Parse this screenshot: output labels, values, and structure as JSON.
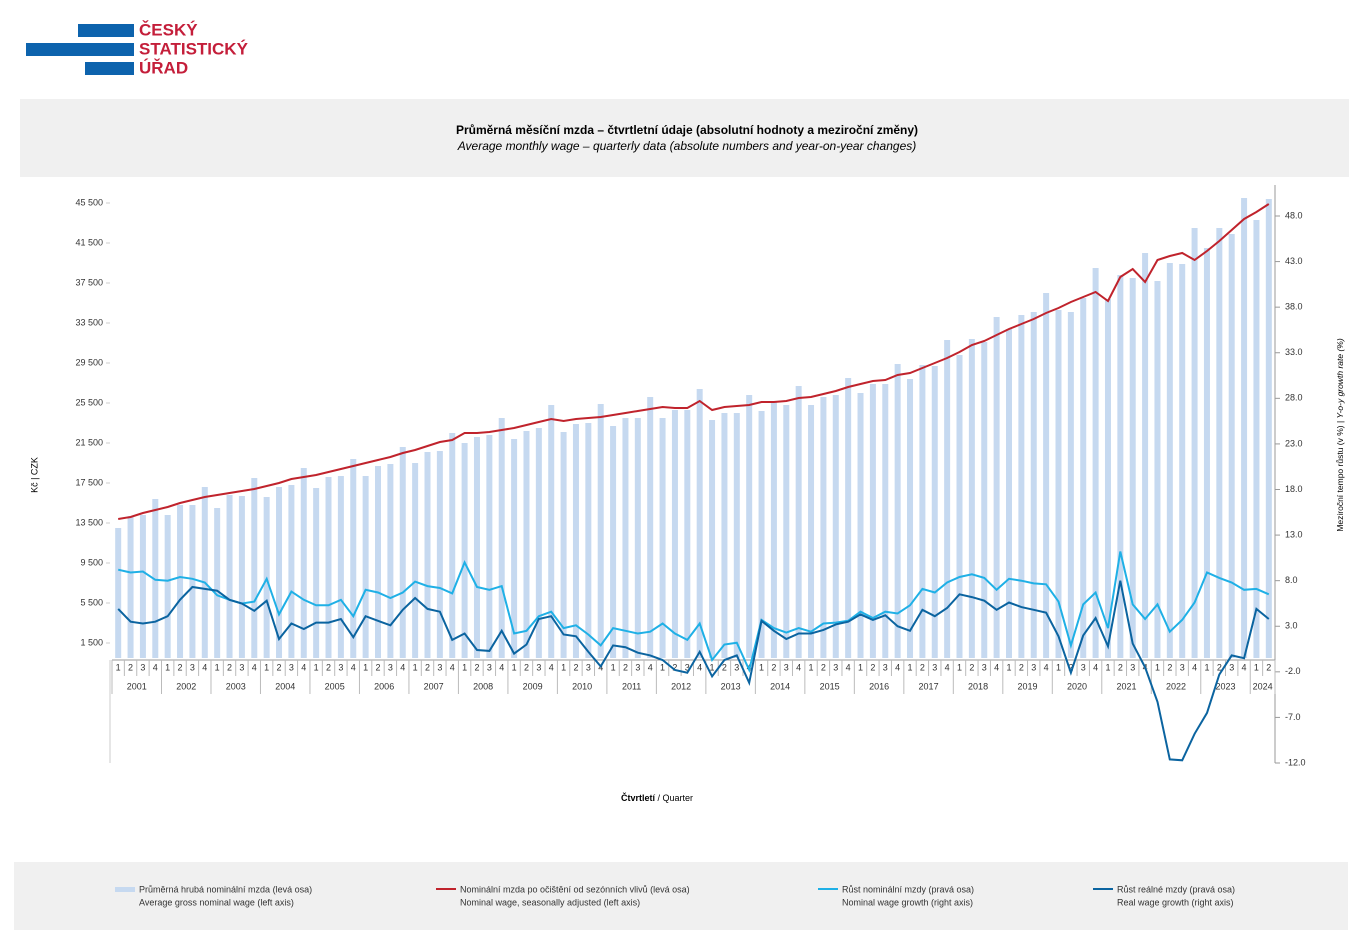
{
  "header": {
    "logo": [
      "ČESKÝ",
      "STATISTICKÝ",
      "ÚŘAD"
    ]
  },
  "chart_data": {
    "type": "bar-line",
    "title": "Průměrná měsíční mzda – čtvrtletní údaje (absolutní hodnoty a meziroční změny)",
    "subtitle": "Average monthly wage – quarterly data (absolute numbers and year-on-year changes)",
    "ylabel": "Kč | CZK",
    "y2label": [
      "Meziroční tempo růstu (v %) | ",
      "Y-o-y growth rate (%)"
    ],
    "xlabel": [
      "Čtvrtletí",
      " / Quarter"
    ],
    "categories": [
      "1",
      "2",
      "3",
      "4",
      "1",
      "2",
      "3",
      "4",
      "1",
      "2",
      "3",
      "4",
      "1",
      "2",
      "3",
      "4",
      "1",
      "2",
      "3",
      "4",
      "1",
      "2",
      "3",
      "4",
      "1",
      "2",
      "3",
      "4",
      "1",
      "2",
      "3",
      "4",
      "1",
      "2",
      "3",
      "4",
      "1",
      "2",
      "3",
      "4",
      "1",
      "2",
      "3",
      "4",
      "1",
      "2",
      "3",
      "4",
      "1",
      "2",
      "3",
      "4",
      "1",
      "2",
      "3",
      "4",
      "1",
      "2",
      "3",
      "4",
      "1",
      "2",
      "3",
      "4",
      "1",
      "2",
      "3",
      "4",
      "1",
      "2",
      "3",
      "4",
      "1",
      "2",
      "3",
      "4",
      "1",
      "2",
      "3",
      "4",
      "1",
      "2",
      "3",
      "4",
      "1",
      "2",
      "3",
      "4",
      "1",
      "2",
      "3",
      "4",
      "1",
      "2"
    ],
    "years": [
      "2001",
      "2002",
      "2003",
      "2004",
      "2005",
      "2006",
      "2007",
      "2008",
      "2009",
      "2010",
      "2011",
      "2012",
      "2013",
      "2014",
      "2015",
      "2016",
      "2017",
      "2018",
      "2019",
      "2020",
      "2021",
      "2022",
      "2023",
      "2024"
    ],
    "ylim": [
      -10500,
      47300
    ],
    "yticks": [
      {
        "value": 1500,
        "label": "1 500"
      },
      {
        "value": 5500,
        "label": "5 500"
      },
      {
        "value": 9500,
        "label": "9 500"
      },
      {
        "value": 13500,
        "label": "13 500"
      },
      {
        "value": 17500,
        "label": "17 500"
      },
      {
        "value": 21500,
        "label": "21 500"
      },
      {
        "value": 25500,
        "label": "25 500"
      },
      {
        "value": 29500,
        "label": "29 500"
      },
      {
        "value": 33500,
        "label": "33 500"
      },
      {
        "value": 37500,
        "label": "37 500"
      },
      {
        "value": 41500,
        "label": "41 500"
      },
      {
        "value": 45500,
        "label": "45 500"
      }
    ],
    "y2lim": [
      -12,
      51.4
    ],
    "y2ticks": [
      {
        "value": -12,
        "label": "-12.0"
      },
      {
        "value": -7,
        "label": "-7.0"
      },
      {
        "value": -2,
        "label": "-2.0"
      },
      {
        "value": 3,
        "label": "3.0"
      },
      {
        "value": 8,
        "label": "8.0"
      },
      {
        "value": 13,
        "label": "13.0"
      },
      {
        "value": 18,
        "label": "18.0"
      },
      {
        "value": 23,
        "label": "23.0"
      },
      {
        "value": 28,
        "label": "28.0"
      },
      {
        "value": 33,
        "label": "33.0"
      },
      {
        "value": 38,
        "label": "38.0"
      },
      {
        "value": 43,
        "label": "43.0"
      },
      {
        "value": 48,
        "label": "48.0"
      }
    ],
    "series": [
      {
        "name": "Průměrná hrubá nominální mzda (levá osa)",
        "name_en": "Average gross nominal wage (left axis)",
        "type": "bar",
        "color": "#c6d9f0",
        "values": [
          13000,
          14200,
          14300,
          15900,
          14300,
          15300,
          15300,
          17100,
          15000,
          16300,
          16200,
          18000,
          16100,
          17100,
          17300,
          19000,
          17000,
          18100,
          18200,
          19900,
          18200,
          19200,
          19400,
          21100,
          19500,
          20600,
          20700,
          22500,
          21500,
          22100,
          22300,
          24000,
          21900,
          22700,
          23000,
          25300,
          22600,
          23400,
          23500,
          25400,
          23200,
          24000,
          24000,
          26100,
          24000,
          24800,
          24800,
          26900,
          23800,
          24500,
          24500,
          26300,
          24700,
          25600,
          25300,
          27200,
          25300,
          26100,
          26300,
          28000,
          26500,
          27400,
          27400,
          29400,
          27900,
          29300,
          29200,
          31800,
          30300,
          31900,
          31600,
          34100,
          32900,
          34300,
          34600,
          36500,
          34800,
          34600,
          36000,
          39000,
          35900,
          38300,
          38000,
          40500,
          37700,
          39500,
          39400,
          43000,
          41000,
          43000,
          42400,
          46000,
          43800,
          45900
        ]
      },
      {
        "name": "Nominální mzda po očištění od sezónních vlivů (levá osa)",
        "name_en": "Nominal wage, seasonally adjusted (left axis)",
        "type": "line",
        "color": "#c0232c",
        "values": [
          13900,
          14100,
          14500,
          14800,
          15100,
          15500,
          15800,
          16100,
          16300,
          16500,
          16700,
          16900,
          17200,
          17500,
          17900,
          18100,
          18300,
          18600,
          18900,
          19200,
          19500,
          19800,
          20100,
          20500,
          20800,
          21200,
          21600,
          21800,
          22500,
          22500,
          22600,
          22800,
          23000,
          23300,
          23600,
          23900,
          23700,
          23900,
          24000,
          24100,
          24300,
          24500,
          24700,
          24900,
          25100,
          25000,
          25000,
          25700,
          24800,
          25100,
          25200,
          25300,
          25600,
          25600,
          25700,
          26000,
          26100,
          26400,
          26700,
          27100,
          27400,
          27700,
          27800,
          28300,
          28500,
          29000,
          29500,
          30000,
          30600,
          31300,
          31700,
          32300,
          32900,
          33400,
          33900,
          34500,
          35000,
          35600,
          36100,
          36600,
          35700,
          38100,
          38900,
          37600,
          39800,
          40200,
          40500,
          39800,
          40700,
          41700,
          42800,
          43900,
          44600,
          45400
        ]
      },
      {
        "name": "Růst nominální mzdy (pravá osa)",
        "name_en": "Nominal wage growth (right axis)",
        "type": "line",
        "axis": "y2",
        "color": "#1fb0e6",
        "values": [
          9.2,
          8.9,
          9.0,
          8.1,
          8.0,
          8.4,
          8.2,
          7.8,
          6.4,
          5.9,
          5.5,
          5.7,
          8.2,
          4.3,
          6.8,
          5.9,
          5.3,
          5.3,
          5.9,
          4.1,
          7.0,
          6.7,
          6.1,
          6.7,
          7.9,
          7.4,
          7.2,
          6.6,
          10.0,
          7.3,
          7.0,
          7.4,
          2.2,
          2.5,
          4.1,
          4.6,
          2.8,
          3.1,
          2.1,
          0.9,
          2.8,
          2.5,
          2.2,
          2.4,
          3.3,
          2.2,
          1.5,
          3.3,
          -0.7,
          1.0,
          1.2,
          -1.8,
          3.7,
          2.8,
          2.3,
          2.8,
          2.4,
          3.3,
          3.4,
          3.6,
          4.6,
          3.9,
          4.6,
          4.4,
          5.3,
          7.1,
          6.7,
          7.8,
          8.4,
          8.7,
          8.3,
          7.0,
          8.2,
          8.0,
          7.7,
          7.6,
          5.7,
          0.9,
          5.4,
          6.7,
          2.8,
          11.2,
          5.4,
          3.8,
          5.4,
          2.4,
          3.7,
          5.6,
          8.9,
          8.3,
          7.8,
          7.0,
          7.1,
          6.5
        ]
      },
      {
        "name": "Růst reálné mzdy (pravá osa)",
        "name_en": "Real wage growth (right axis)",
        "type": "line",
        "axis": "y2",
        "color": "#0b64a0",
        "values": [
          4.9,
          3.5,
          3.3,
          3.5,
          4.1,
          5.9,
          7.3,
          7.1,
          6.9,
          5.9,
          5.5,
          4.7,
          5.8,
          1.6,
          3.3,
          2.7,
          3.4,
          3.4,
          3.8,
          1.8,
          4.1,
          3.6,
          3.1,
          4.8,
          6.1,
          4.9,
          4.6,
          1.5,
          2.2,
          0.4,
          0.3,
          2.5,
          0.0,
          1.0,
          3.8,
          4.1,
          2.1,
          1.9,
          0.2,
          -1.4,
          0.9,
          0.7,
          0.1,
          -0.2,
          -0.7,
          -1.8,
          -2.1,
          0.2,
          -2.5,
          -0.7,
          -0.2,
          -3.2,
          3.6,
          2.5,
          1.6,
          2.2,
          2.2,
          2.6,
          3.2,
          3.5,
          4.3,
          3.7,
          4.2,
          3.0,
          2.5,
          4.8,
          4.1,
          5.0,
          6.5,
          6.2,
          5.8,
          4.8,
          5.6,
          5.1,
          4.8,
          4.5,
          1.9,
          -2.1,
          2.0,
          3.9,
          0.8,
          8.0,
          1.1,
          -1.5,
          -5.3,
          -11.6,
          -11.7,
          -8.8,
          -6.5,
          -2.3,
          -0.2,
          -0.5,
          4.9,
          3.8
        ]
      }
    ]
  }
}
